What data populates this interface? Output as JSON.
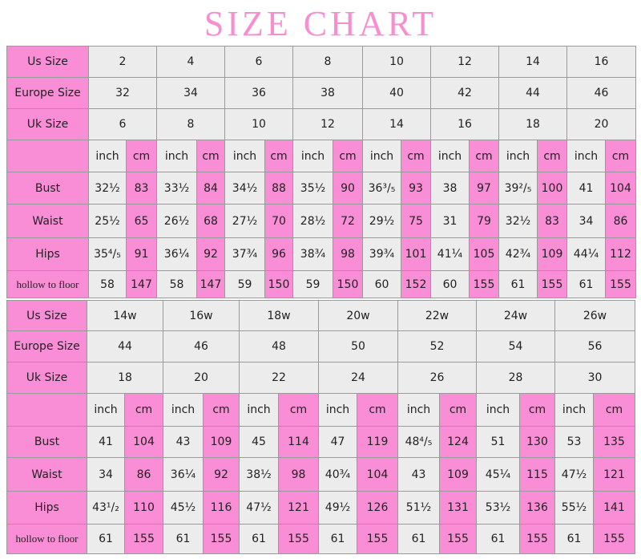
{
  "title": "SIZE CHART",
  "units": [
    "inch",
    "cm"
  ],
  "tables": [
    {
      "rows": [
        {
          "label": "Us Size",
          "values": [
            2,
            4,
            6,
            8,
            10,
            12,
            14,
            16
          ]
        },
        {
          "label": "Europe Size",
          "values": [
            32,
            34,
            36,
            38,
            40,
            42,
            44,
            46
          ]
        },
        {
          "label": "Uk Size",
          "values": [
            6,
            8,
            10,
            12,
            14,
            16,
            18,
            20
          ]
        }
      ],
      "measurements": [
        {
          "label": "Bust",
          "values": [
            [
              "32½",
              83
            ],
            [
              "33½",
              84
            ],
            [
              "34½",
              88
            ],
            [
              "35½",
              90
            ],
            [
              "36³/₅",
              93
            ],
            [
              38,
              97
            ],
            [
              "39²/₅",
              100
            ],
            [
              41,
              104
            ]
          ]
        },
        {
          "label": "Waist",
          "values": [
            [
              "25½",
              65
            ],
            [
              "26½",
              68
            ],
            [
              "27½",
              70
            ],
            [
              "28½",
              72
            ],
            [
              "29½",
              75
            ],
            [
              31,
              79
            ],
            [
              "32½",
              83
            ],
            [
              34,
              86
            ]
          ]
        },
        {
          "label": "Hips",
          "values": [
            [
              "35⁴/₅",
              91
            ],
            [
              "36¼",
              92
            ],
            [
              "37¾",
              96
            ],
            [
              "38¾",
              98
            ],
            [
              "39¾",
              101
            ],
            [
              "41¼",
              105
            ],
            [
              "42¾",
              109
            ],
            [
              "44¼",
              112
            ]
          ]
        },
        {
          "label": "hollow to floor",
          "values": [
            [
              58,
              147
            ],
            [
              58,
              147
            ],
            [
              59,
              150
            ],
            [
              59,
              150
            ],
            [
              60,
              152
            ],
            [
              60,
              155
            ],
            [
              61,
              155
            ],
            [
              61,
              155
            ]
          ]
        }
      ]
    },
    {
      "rows": [
        {
          "label": "Us Size",
          "values": [
            "14w",
            "16w",
            "18w",
            "20w",
            "22w",
            "24w",
            "26w"
          ]
        },
        {
          "label": "Europe Size",
          "values": [
            44,
            46,
            48,
            50,
            52,
            54,
            56
          ]
        },
        {
          "label": "Uk Size",
          "values": [
            18,
            20,
            22,
            24,
            26,
            28,
            30
          ]
        }
      ],
      "measurements": [
        {
          "label": "Bust",
          "values": [
            [
              41,
              104
            ],
            [
              43,
              109
            ],
            [
              45,
              114
            ],
            [
              47,
              119
            ],
            [
              "48⁴/₅",
              124
            ],
            [
              51,
              130
            ],
            [
              53,
              135
            ]
          ]
        },
        {
          "label": "Waist",
          "values": [
            [
              34,
              86
            ],
            [
              "36¼",
              92
            ],
            [
              "38½",
              98
            ],
            [
              "40¾",
              104
            ],
            [
              43,
              109
            ],
            [
              "45¼",
              115
            ],
            [
              "47½",
              121
            ]
          ]
        },
        {
          "label": "Hips",
          "values": [
            [
              "43¹/₂",
              110
            ],
            [
              "45½",
              116
            ],
            [
              "47½",
              121
            ],
            [
              "49½",
              126
            ],
            [
              "51½",
              131
            ],
            [
              "53½",
              136
            ],
            [
              "55½",
              141
            ]
          ]
        },
        {
          "label": "hollow to floor",
          "values": [
            [
              61,
              155
            ],
            [
              61,
              155
            ],
            [
              61,
              155
            ],
            [
              61,
              155
            ],
            [
              61,
              155
            ],
            [
              61,
              155
            ],
            [
              61,
              155
            ]
          ]
        }
      ]
    }
  ]
}
